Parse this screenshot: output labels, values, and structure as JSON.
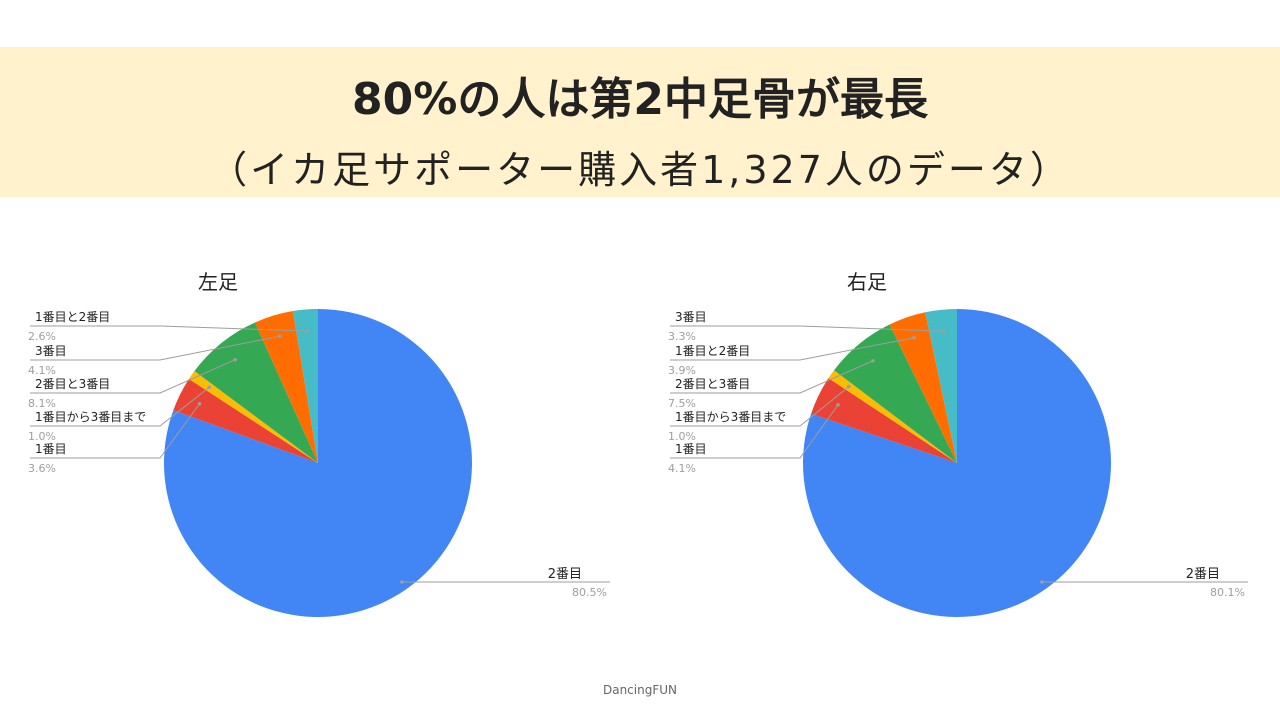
{
  "header": {
    "title": "80%の人は第2中足骨が最長",
    "subtitle": "（イカ足サポーター購入者1,327人のデータ）"
  },
  "footer": {
    "text": "DancingFUN"
  },
  "chart_data": [
    {
      "type": "pie",
      "title": "左足",
      "categories": [
        "2番目",
        "1番目",
        "1番目から3番目まで",
        "2番目と3番目",
        "3番目",
        "1番目と2番目"
      ],
      "values": [
        80.5,
        3.6,
        1.0,
        8.1,
        4.1,
        2.6
      ],
      "labels": [
        "80.5%",
        "3.6%",
        "1.0%",
        "8.1%",
        "4.1%",
        "2.6%"
      ],
      "colors": [
        "#4285f4",
        "#ea4335",
        "#fbbc04",
        "#34a853",
        "#ff6d01",
        "#46bdc6"
      ]
    },
    {
      "type": "pie",
      "title": "右足",
      "categories": [
        "2番目",
        "1番目",
        "1番目から3番目まで",
        "2番目と3番目",
        "1番目と2番目",
        "3番目"
      ],
      "values": [
        80.1,
        4.1,
        1.0,
        7.5,
        3.9,
        3.3
      ],
      "labels": [
        "80.1%",
        "4.1%",
        "1.0%",
        "7.5%",
        "3.9%",
        "3.3%"
      ],
      "colors": [
        "#4285f4",
        "#ea4335",
        "#fbbc04",
        "#34a853",
        "#ff6d01",
        "#46bdc6"
      ]
    }
  ]
}
